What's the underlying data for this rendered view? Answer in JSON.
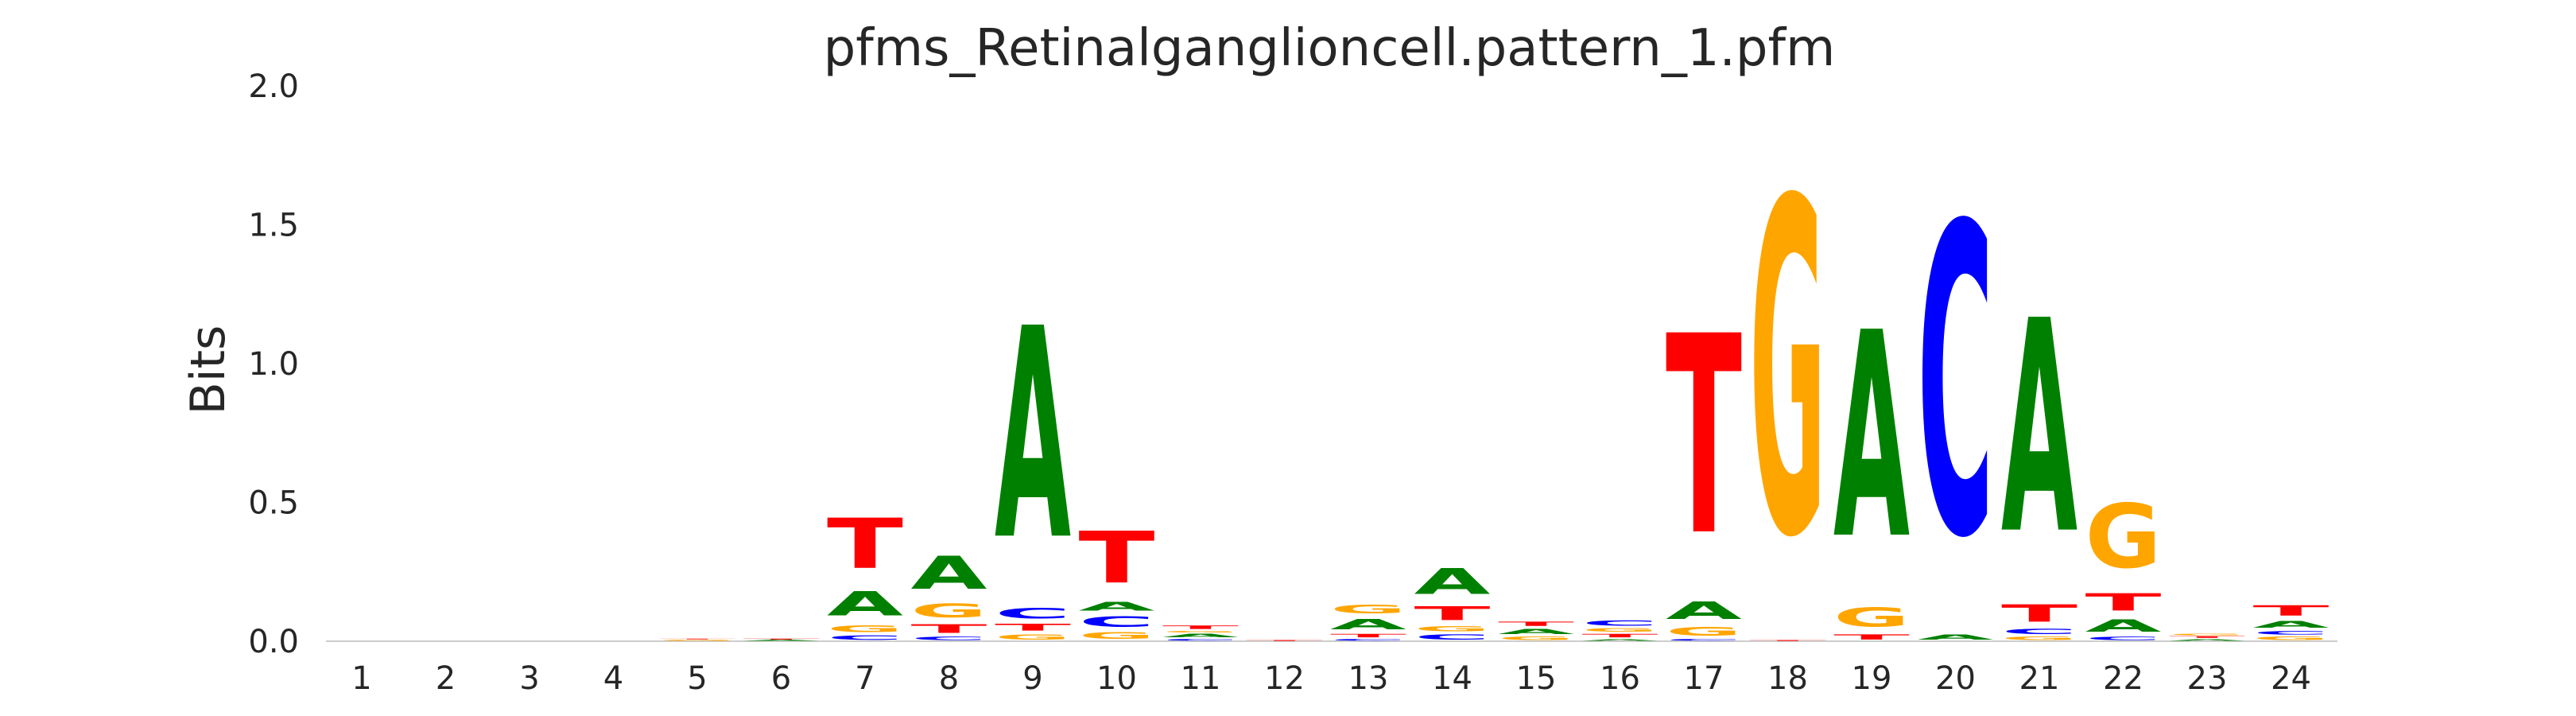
{
  "chart_data": {
    "type": "sequence-logo",
    "title": "pfms_Retinalganglioncell.pattern_1.pfm",
    "ylabel": "Bits",
    "xlabel": "",
    "ylim": [
      0,
      2.0
    ],
    "yticks": [
      "0.0",
      "0.5",
      "1.0",
      "1.5",
      "2.0"
    ],
    "positions": [
      "1",
      "2",
      "3",
      "4",
      "5",
      "6",
      "7",
      "8",
      "9",
      "10",
      "11",
      "12",
      "13",
      "14",
      "15",
      "16",
      "17",
      "18",
      "19",
      "20",
      "21",
      "22",
      "23",
      "24"
    ],
    "base_colors": {
      "A": "#008000",
      "C": "#0000ff",
      "G": "#ffa500",
      "T": "#ff0000"
    },
    "columns": [
      [],
      [],
      [],
      [],
      [
        {
          "base": "G",
          "bits": 0.006
        },
        {
          "base": "T",
          "bits": 0.004
        }
      ],
      [
        {
          "base": "A",
          "bits": 0.005
        },
        {
          "base": "T",
          "bits": 0.005
        }
      ],
      [
        {
          "base": "C",
          "bits": 0.025
        },
        {
          "base": "G",
          "bits": 0.04
        },
        {
          "base": "A",
          "bits": 0.14
        },
        {
          "base": "T",
          "bits": 0.29
        }
      ],
      [
        {
          "base": "C",
          "bits": 0.02
        },
        {
          "base": "T",
          "bits": 0.05
        },
        {
          "base": "G",
          "bits": 0.08
        },
        {
          "base": "A",
          "bits": 0.19
        }
      ],
      [
        {
          "base": "G",
          "bits": 0.03
        },
        {
          "base": "T",
          "bits": 0.04
        },
        {
          "base": "C",
          "bits": 0.06
        },
        {
          "base": "A",
          "bits": 1.22
        }
      ],
      [
        {
          "base": "G",
          "bits": 0.04
        },
        {
          "base": "C",
          "bits": 0.06
        },
        {
          "base": "A",
          "bits": 0.05
        },
        {
          "base": "T",
          "bits": 0.3
        }
      ],
      [
        {
          "base": "C",
          "bits": 0.01
        },
        {
          "base": "A",
          "bits": 0.02
        },
        {
          "base": "G",
          "bits": 0.01
        },
        {
          "base": "T",
          "bits": 0.02
        }
      ],
      [
        {
          "base": "T",
          "bits": 0.005
        }
      ],
      [
        {
          "base": "C",
          "bits": 0.01
        },
        {
          "base": "T",
          "bits": 0.02
        },
        {
          "base": "A",
          "bits": 0.06
        },
        {
          "base": "G",
          "bits": 0.05
        }
      ],
      [
        {
          "base": "C",
          "bits": 0.03
        },
        {
          "base": "G",
          "bits": 0.03
        },
        {
          "base": "T",
          "bits": 0.08
        },
        {
          "base": "A",
          "bits": 0.15
        }
      ],
      [
        {
          "base": "G",
          "bits": 0.02
        },
        {
          "base": "A",
          "bits": 0.03
        },
        {
          "base": "T",
          "bits": 0.025
        }
      ],
      [
        {
          "base": "A",
          "bits": 0.01
        },
        {
          "base": "T",
          "bits": 0.02
        },
        {
          "base": "G",
          "bits": 0.02
        },
        {
          "base": "C",
          "bits": 0.03
        }
      ],
      [
        {
          "base": "C",
          "bits": 0.01
        },
        {
          "base": "G",
          "bits": 0.05
        },
        {
          "base": "A",
          "bits": 0.1
        },
        {
          "base": "T",
          "bits": 1.15
        }
      ],
      [
        {
          "base": "T",
          "bits": 0.005
        },
        {
          "base": "G",
          "bits": 1.93
        }
      ],
      [
        {
          "base": "T",
          "bits": 0.03
        },
        {
          "base": "G",
          "bits": 0.11
        },
        {
          "base": "A",
          "bits": 1.19
        }
      ],
      [
        {
          "base": "A",
          "bits": 0.03
        },
        {
          "base": "C",
          "bits": 1.79
        }
      ],
      [
        {
          "base": "G",
          "bits": 0.02
        },
        {
          "base": "C",
          "bits": 0.03
        },
        {
          "base": "T",
          "bits": 0.1
        },
        {
          "base": "A",
          "bits": 1.23
        }
      ],
      [
        {
          "base": "C",
          "bits": 0.02
        },
        {
          "base": "A",
          "bits": 0.07
        },
        {
          "base": "T",
          "bits": 0.1
        },
        {
          "base": "G",
          "bits": 0.37
        }
      ],
      [
        {
          "base": "A",
          "bits": 0.01
        },
        {
          "base": "T",
          "bits": 0.01
        },
        {
          "base": "G",
          "bits": 0.01
        }
      ],
      [
        {
          "base": "G",
          "bits": 0.02
        },
        {
          "base": "C",
          "bits": 0.02
        },
        {
          "base": "A",
          "bits": 0.04
        },
        {
          "base": "T",
          "bits": 0.06
        }
      ]
    ]
  }
}
